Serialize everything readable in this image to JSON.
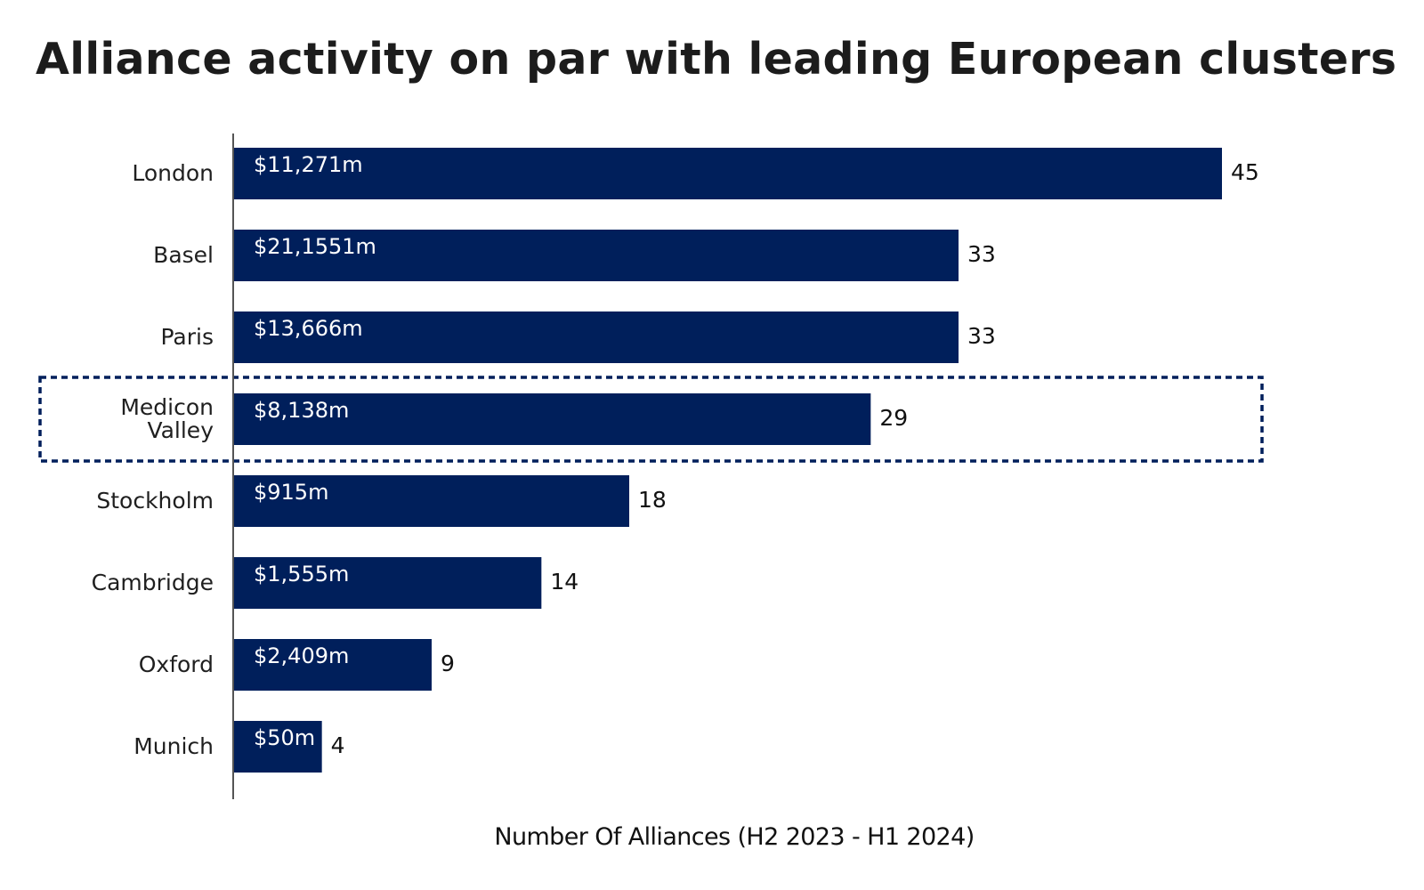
{
  "chart_data": {
    "type": "bar",
    "orientation": "horizontal",
    "title": "Alliance activity on par with leading European clusters",
    "xlabel": "Number Of Alliances (H2 2023 - H1 2024)",
    "ylabel": "",
    "categories": [
      "London",
      "Basel",
      "Paris",
      "Medicon Valley",
      "Stockholm",
      "Cambridge",
      "Oxford",
      "Munich"
    ],
    "category_lines": [
      [
        "London"
      ],
      [
        "Basel"
      ],
      [
        "Paris"
      ],
      [
        "Medicon",
        "Valley"
      ],
      [
        "Stockholm"
      ],
      [
        "Cambridge"
      ],
      [
        "Oxford"
      ],
      [
        "Munich"
      ]
    ],
    "values": [
      45,
      33,
      33,
      29,
      18,
      14,
      9,
      4
    ],
    "bar_labels": [
      "$11,271m",
      "$21,1551m",
      "$13,666m",
      "$8,138m",
      "$915m",
      "$1,555m",
      "$2,409m",
      "$50m"
    ],
    "highlighted_category": "Medicon Valley",
    "xlim": [
      0,
      45
    ],
    "grid": false,
    "legend": "none",
    "colors": {
      "bar": "#001f5b",
      "highlight_border": "#001f5b",
      "axis": "#555555"
    }
  }
}
